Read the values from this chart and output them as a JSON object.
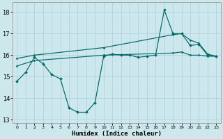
{
  "xlabel": "Humidex (Indice chaleur)",
  "bg_color": "#cce8ec",
  "grid_color": "#aacfd5",
  "line_color": "#006868",
  "xlim": [
    -0.5,
    23.5
  ],
  "ylim": [
    12.85,
    18.45
  ],
  "yticks": [
    13,
    14,
    15,
    16,
    17,
    18
  ],
  "xticks": [
    0,
    1,
    2,
    3,
    4,
    5,
    6,
    7,
    8,
    9,
    10,
    11,
    12,
    13,
    14,
    15,
    16,
    17,
    18,
    19,
    20,
    21,
    22,
    23
  ],
  "s1_x": [
    0,
    1,
    2,
    3,
    4,
    5,
    6,
    7,
    8,
    9,
    10,
    11,
    12,
    13,
    14,
    15,
    16,
    17,
    18,
    19,
    20,
    21,
    22,
    23
  ],
  "s1_y": [
    14.8,
    15.2,
    15.9,
    15.6,
    15.1,
    14.9,
    13.55,
    13.35,
    13.35,
    13.8,
    15.95,
    16.05,
    16.0,
    16.0,
    15.9,
    15.95,
    16.0,
    18.1,
    17.0,
    17.0,
    16.45,
    16.5,
    16.0,
    15.95
  ],
  "s2_x": [
    0,
    2,
    10,
    18,
    19,
    20,
    21,
    22,
    23
  ],
  "s2_y": [
    15.85,
    16.0,
    16.35,
    16.95,
    17.0,
    16.7,
    16.55,
    16.05,
    15.95
  ],
  "s3_x": [
    0,
    2,
    10,
    18,
    19,
    20,
    21,
    22,
    23
  ],
  "s3_y": [
    15.5,
    15.75,
    16.0,
    16.1,
    16.15,
    16.0,
    16.0,
    15.95,
    15.95
  ]
}
